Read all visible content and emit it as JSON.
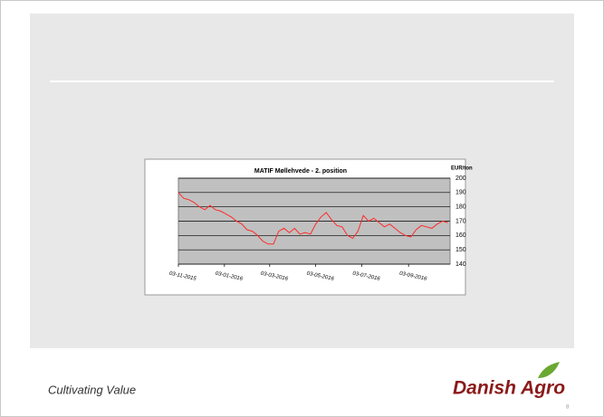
{
  "footer": {
    "tagline": "Cultivating Value",
    "brand": "Danish Agro",
    "page_number": "8"
  },
  "chart_data": {
    "type": "line",
    "title": "MATIF Møllehvede - 2. position",
    "y_unit": "EUR/ton",
    "x": [
      "2015-11-03",
      "2015-11-10",
      "2015-11-17",
      "2015-11-24",
      "2015-12-01",
      "2015-12-08",
      "2015-12-15",
      "2015-12-22",
      "2015-12-29",
      "2016-01-05",
      "2016-01-12",
      "2016-01-19",
      "2016-01-26",
      "2016-02-02",
      "2016-02-09",
      "2016-02-16",
      "2016-02-23",
      "2016-03-01",
      "2016-03-08",
      "2016-03-15",
      "2016-03-22",
      "2016-03-29",
      "2016-04-05",
      "2016-04-12",
      "2016-04-19",
      "2016-04-26",
      "2016-05-03",
      "2016-05-10",
      "2016-05-17",
      "2016-05-24",
      "2016-05-31",
      "2016-06-07",
      "2016-06-14",
      "2016-06-21",
      "2016-06-28",
      "2016-07-05",
      "2016-07-12",
      "2016-07-19",
      "2016-07-26",
      "2016-08-02",
      "2016-08-09",
      "2016-08-16",
      "2016-08-23",
      "2016-08-30",
      "2016-09-06",
      "2016-09-13",
      "2016-09-20",
      "2016-09-27",
      "2016-10-04",
      "2016-10-11",
      "2016-10-18",
      "2016-10-25"
    ],
    "series": [
      {
        "name": "MATIF Møllehvede",
        "color": "#ff2a2a",
        "values": [
          190,
          186,
          185,
          183,
          180,
          178,
          181,
          178,
          177,
          175,
          173,
          170,
          168,
          164,
          163,
          160,
          156,
          154,
          154,
          163,
          165,
          162,
          165,
          161,
          162,
          161,
          168,
          173,
          176,
          171,
          167,
          166,
          160,
          158,
          163,
          174,
          170,
          172,
          169,
          166,
          168,
          165,
          162,
          160,
          159,
          164,
          167,
          166,
          165,
          168,
          170,
          169
        ]
      }
    ],
    "xlim": [
      "2015-11-03",
      "2016-10-28"
    ],
    "xticks": [
      {
        "value": "2015-11-03",
        "label": "03-11-2015"
      },
      {
        "value": "2016-01-03",
        "label": "03-01-2016"
      },
      {
        "value": "2016-03-03",
        "label": "03-03-2016"
      },
      {
        "value": "2016-05-03",
        "label": "03-05-2016"
      },
      {
        "value": "2016-07-03",
        "label": "03-07-2016"
      },
      {
        "value": "2016-09-03",
        "label": "03-09-2016"
      }
    ],
    "ylim": [
      140,
      200
    ],
    "yticks": [
      140,
      150,
      160,
      170,
      180,
      190,
      200
    ],
    "grid": true
  }
}
